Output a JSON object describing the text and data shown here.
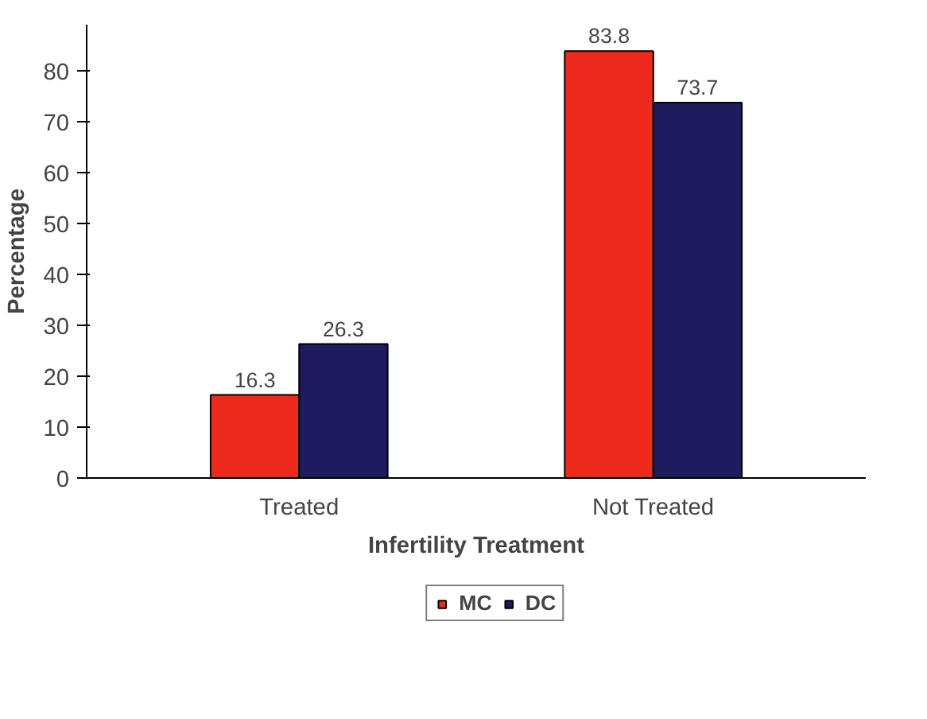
{
  "chart_data": {
    "type": "bar",
    "xlabel": "Infertility Treatment",
    "ylabel": "Percentage",
    "categories": [
      "Treated",
      "Not Treated"
    ],
    "series": [
      {
        "name": "MC",
        "color": "#ee2a1c",
        "values": [
          16.3,
          83.8
        ]
      },
      {
        "name": "DC",
        "color": "#1c1c5e",
        "values": [
          26.3,
          73.7
        ]
      }
    ],
    "ylim": [
      0,
      89
    ],
    "yticks": [
      0,
      10,
      20,
      30,
      40,
      50,
      60,
      70,
      80
    ],
    "grid": false,
    "legend": "bottom",
    "data_labels": true
  }
}
